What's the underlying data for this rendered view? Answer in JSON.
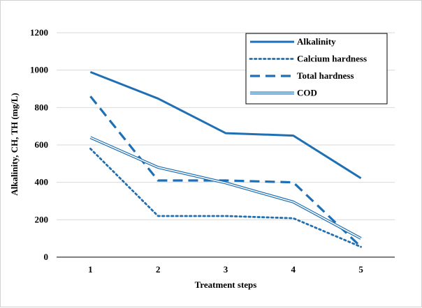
{
  "chart_data": {
    "type": "line",
    "title": "",
    "xlabel": "Treatment steps",
    "ylabel": "Alkalinity, CH, TH (mg/L)",
    "categories": [
      "1",
      "2",
      "3",
      "4",
      "5"
    ],
    "ylim": [
      0,
      1200
    ],
    "yticks": [
      "0",
      "200",
      "400",
      "600",
      "800",
      "1000",
      "1200"
    ],
    "grid": "horizontal",
    "legend_position": "top-right",
    "series": [
      {
        "name": "Alkalinity",
        "values": [
          990,
          848,
          663,
          650,
          422
        ],
        "color": "#1f6fb4",
        "style": "solid"
      },
      {
        "name": "Calcium hardness",
        "values": [
          580,
          220,
          220,
          208,
          55
        ],
        "color": "#1f6fb4",
        "style": "dotted"
      },
      {
        "name": "Total hardness",
        "values": [
          860,
          410,
          410,
          400,
          55
        ],
        "color": "#1f6fb4",
        "style": "dashed"
      },
      {
        "name": "COD",
        "values": [
          640,
          480,
          397,
          295,
          100
        ],
        "color": "#1f6fb4",
        "style": "double"
      }
    ]
  }
}
